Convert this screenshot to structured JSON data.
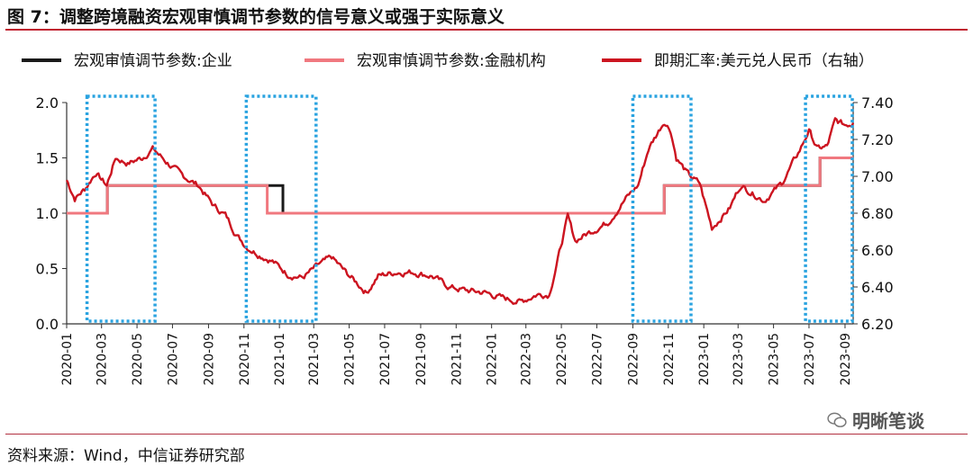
{
  "title": "图 7：调整跨境融资宏观审慎调节参数的信号意义或强于实际意义",
  "source": "资料来源：Wind，中信证券研究部",
  "watermark": "明晰笔谈",
  "colors": {
    "accent_rule": "#c01f2f",
    "enterprise": "#1a1a1a",
    "financial": "#f0787f",
    "fx": "#cc1420",
    "highlight_box": "#2aa3e0"
  },
  "chart_data": {
    "type": "line",
    "title": "调整跨境融资宏观审慎调节参数的信号意义或强于实际意义",
    "x_range": [
      "2020-01",
      "2023-09"
    ],
    "x_tick_labels": [
      "2020-01",
      "2020-03",
      "2020-05",
      "2020-07",
      "2020-09",
      "2020-11",
      "2021-01",
      "2021-03",
      "2021-05",
      "2021-07",
      "2021-09",
      "2021-11",
      "2022-01",
      "2022-03",
      "2022-05",
      "2022-07",
      "2022-09",
      "2022-11",
      "2023-01",
      "2023-03",
      "2023-05",
      "2023-07",
      "2023-09"
    ],
    "y_left": {
      "range": [
        0.0,
        2.0
      ],
      "ticks": [
        "0.0",
        "0.5",
        "1.0",
        "1.5",
        "2.0"
      ]
    },
    "y_right": {
      "range": [
        6.2,
        7.4
      ],
      "ticks": [
        "6.20",
        "6.40",
        "6.60",
        "6.80",
        "7.00",
        "7.20",
        "7.40"
      ]
    },
    "legend": [
      "宏观审慎调节参数:企业",
      "宏观审慎调节参数:金融机构",
      "即期汇率:美元兑人民币（右轴）"
    ],
    "series": [
      {
        "name": "宏观审慎调节参数:企业",
        "axis": "left",
        "step_points": [
          [
            "2020-01-01",
            1.0
          ],
          [
            "2020-03-11",
            1.25
          ],
          [
            "2021-01-07",
            1.0
          ],
          [
            "2022-10-25",
            1.25
          ],
          [
            "2023-07-20",
            1.5
          ],
          [
            "2023-09-15",
            1.5
          ]
        ]
      },
      {
        "name": "宏观审慎调节参数:金融机构",
        "axis": "left",
        "step_points": [
          [
            "2020-01-01",
            1.0
          ],
          [
            "2020-03-11",
            1.25
          ],
          [
            "2020-12-11",
            1.0
          ],
          [
            "2022-10-25",
            1.25
          ],
          [
            "2023-07-20",
            1.5
          ],
          [
            "2023-09-15",
            1.5
          ]
        ]
      },
      {
        "name": "即期汇率:美元兑人民币（右轴）",
        "axis": "right",
        "points": [
          [
            "2020-01-01",
            6.98
          ],
          [
            "2020-01-15",
            6.88
          ],
          [
            "2020-02-01",
            6.93
          ],
          [
            "2020-02-20",
            7.02
          ],
          [
            "2020-03-10",
            6.95
          ],
          [
            "2020-03-25",
            7.1
          ],
          [
            "2020-04-15",
            7.07
          ],
          [
            "2020-05-10",
            7.1
          ],
          [
            "2020-05-28",
            7.15
          ],
          [
            "2020-06-20",
            7.08
          ],
          [
            "2020-07-15",
            7.01
          ],
          [
            "2020-08-15",
            6.95
          ],
          [
            "2020-09-10",
            6.84
          ],
          [
            "2020-09-30",
            6.79
          ],
          [
            "2020-10-20",
            6.68
          ],
          [
            "2020-11-05",
            6.62
          ],
          [
            "2020-11-25",
            6.58
          ],
          [
            "2020-12-20",
            6.54
          ],
          [
            "2021-01-15",
            6.47
          ],
          [
            "2021-02-10",
            6.45
          ],
          [
            "2021-03-10",
            6.52
          ],
          [
            "2021-04-01",
            6.56
          ],
          [
            "2021-04-25",
            6.48
          ],
          [
            "2021-05-31",
            6.37
          ],
          [
            "2021-06-20",
            6.46
          ],
          [
            "2021-07-20",
            6.48
          ],
          [
            "2021-08-20",
            6.48
          ],
          [
            "2021-09-20",
            6.46
          ],
          [
            "2021-10-20",
            6.4
          ],
          [
            "2021-11-20",
            6.38
          ],
          [
            "2021-12-20",
            6.37
          ],
          [
            "2022-01-20",
            6.34
          ],
          [
            "2022-02-20",
            6.32
          ],
          [
            "2022-03-20",
            6.36
          ],
          [
            "2022-04-10",
            6.36
          ],
          [
            "2022-04-25",
            6.55
          ],
          [
            "2022-05-12",
            6.78
          ],
          [
            "2022-05-25",
            6.65
          ],
          [
            "2022-06-20",
            6.7
          ],
          [
            "2022-07-20",
            6.75
          ],
          [
            "2022-08-20",
            6.88
          ],
          [
            "2022-09-10",
            6.95
          ],
          [
            "2022-09-28",
            7.15
          ],
          [
            "2022-10-25",
            7.3
          ],
          [
            "2022-11-05",
            7.25
          ],
          [
            "2022-11-15",
            7.1
          ],
          [
            "2022-12-05",
            7.01
          ],
          [
            "2022-12-25",
            6.96
          ],
          [
            "2023-01-15",
            6.72
          ],
          [
            "2023-02-15",
            6.83
          ],
          [
            "2023-03-05",
            6.95
          ],
          [
            "2023-04-15",
            6.87
          ],
          [
            "2023-05-15",
            6.96
          ],
          [
            "2023-06-15",
            7.14
          ],
          [
            "2023-07-01",
            7.25
          ],
          [
            "2023-07-15",
            7.15
          ],
          [
            "2023-08-01",
            7.16
          ],
          [
            "2023-08-15",
            7.3
          ],
          [
            "2023-09-01",
            7.28
          ],
          [
            "2023-09-15",
            7.29
          ]
        ]
      }
    ],
    "highlight_periods": [
      [
        "2020-02-05",
        "2020-06-01"
      ],
      [
        "2020-11-05",
        "2021-03-05"
      ],
      [
        "2022-09-01",
        "2022-12-10"
      ],
      [
        "2023-06-25",
        "2023-09-15"
      ]
    ],
    "grid": false
  }
}
